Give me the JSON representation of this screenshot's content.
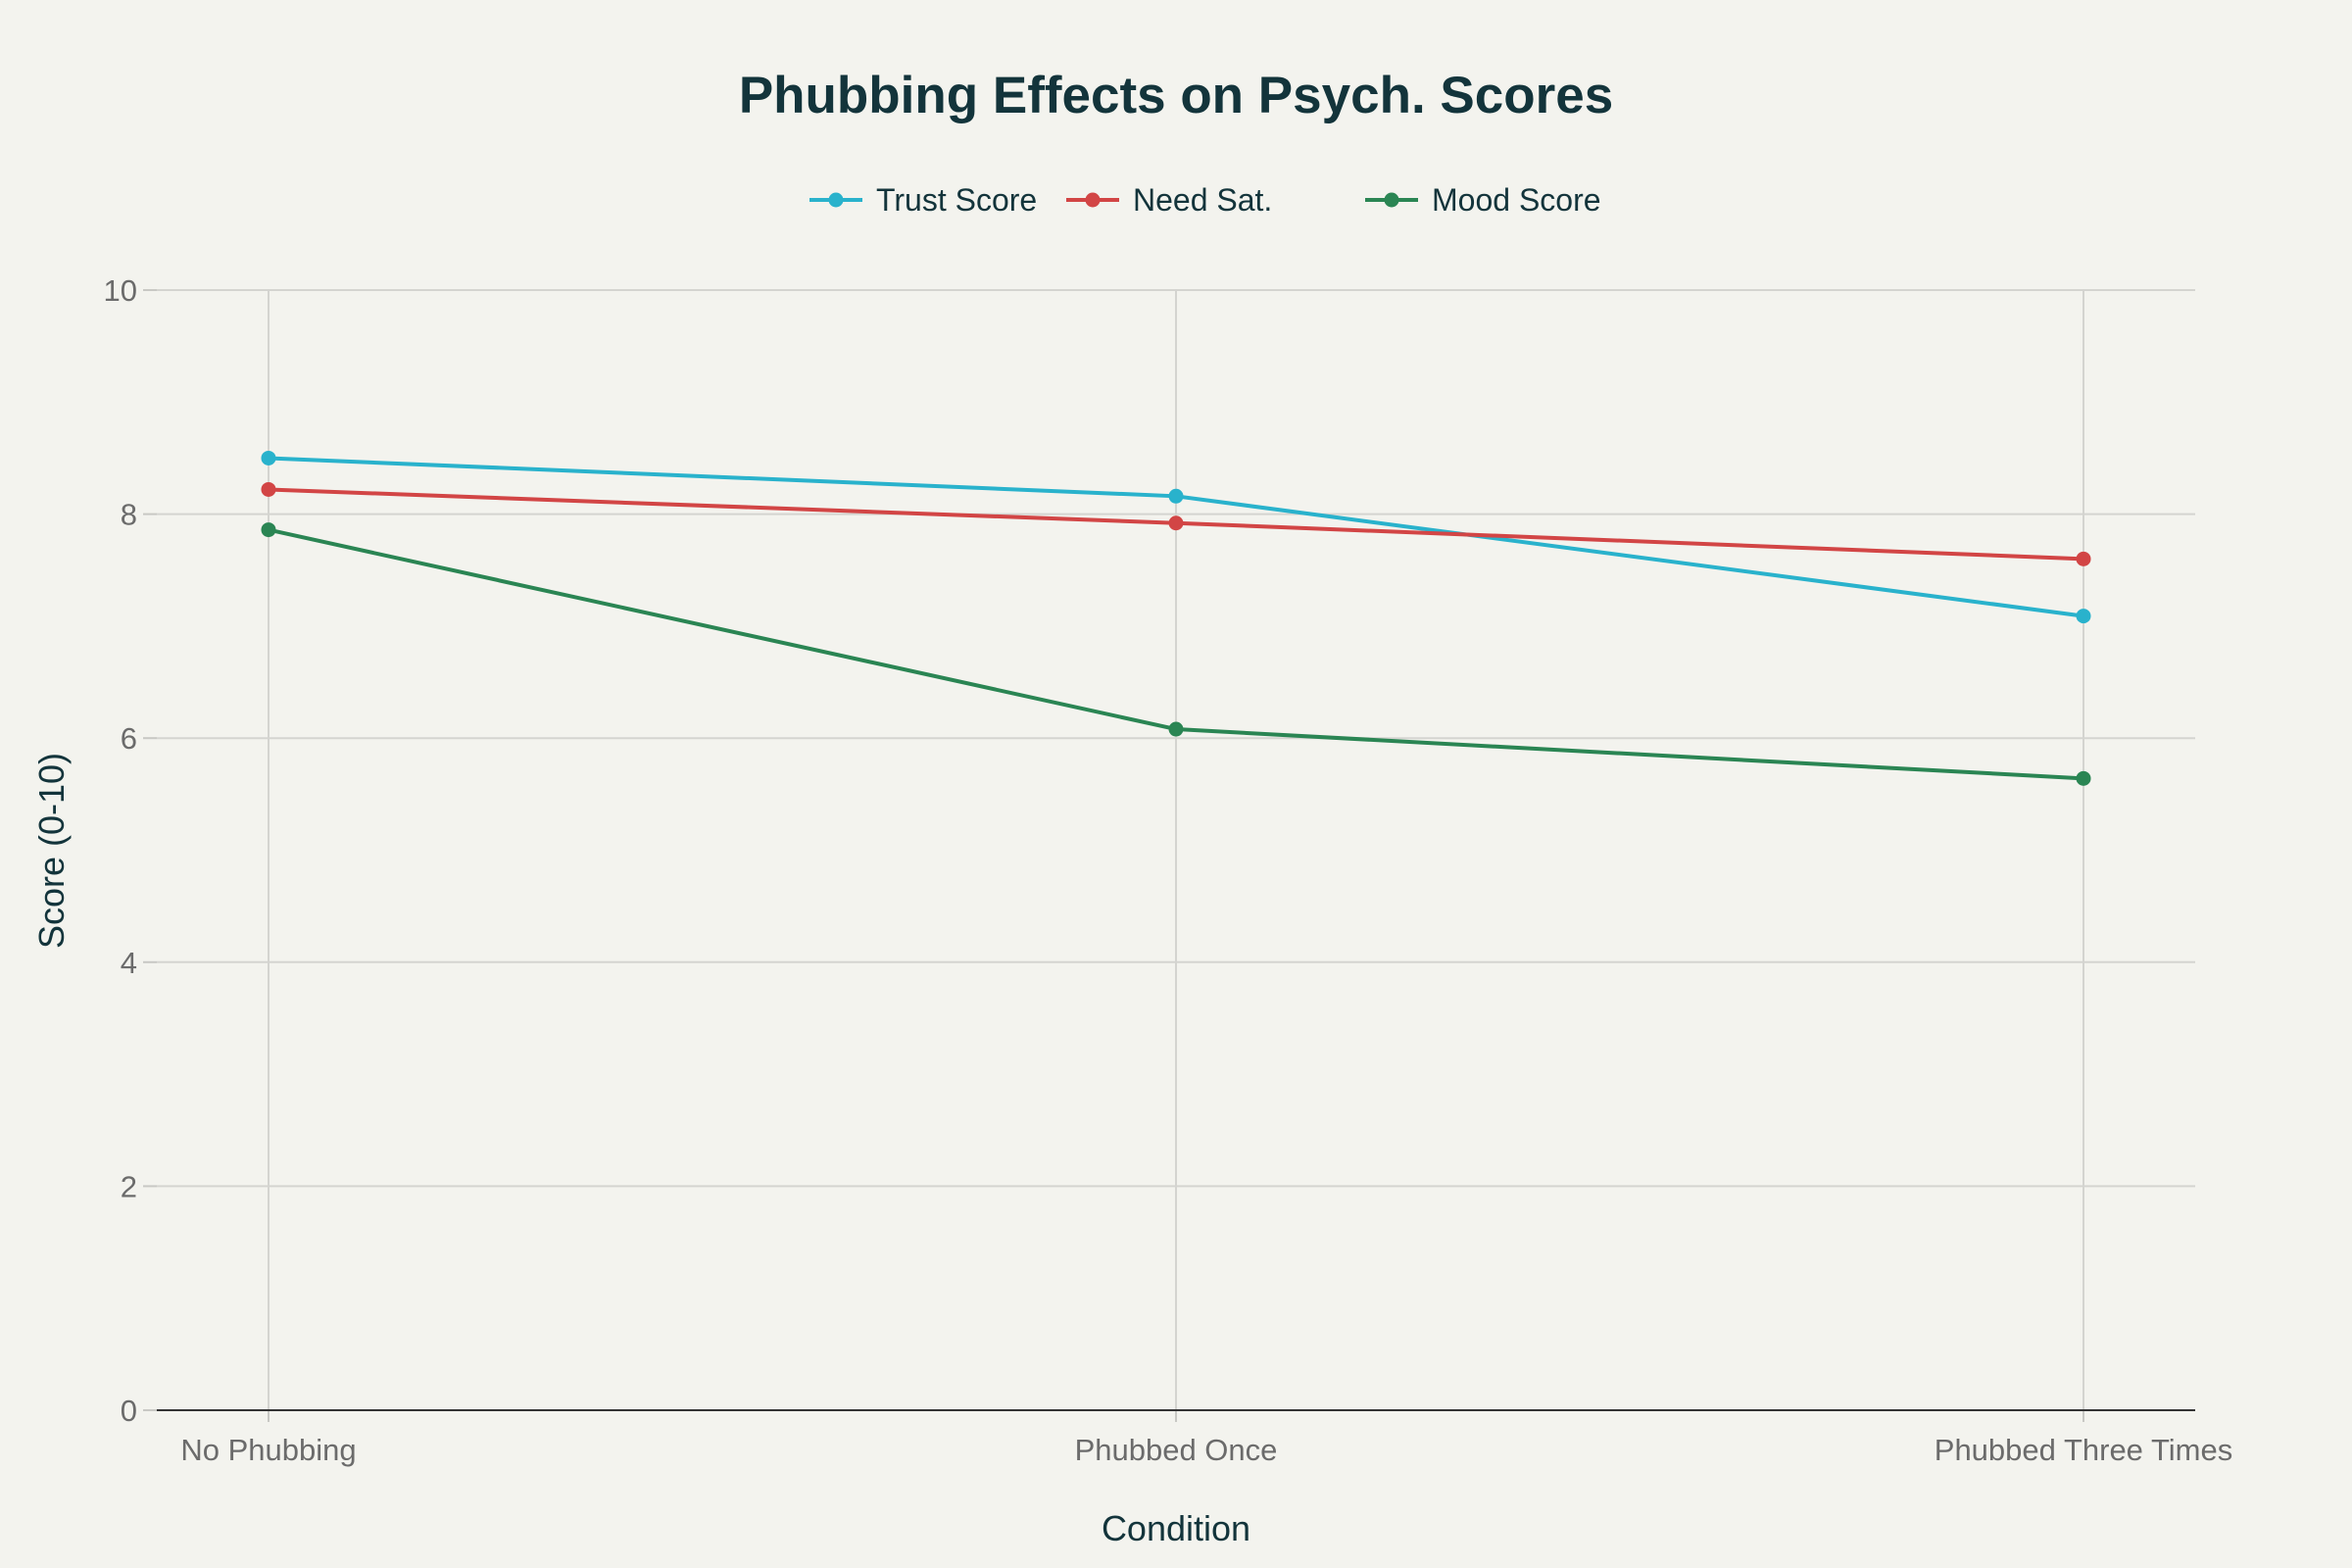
{
  "chart_data": {
    "type": "line",
    "title": "Phubbing Effects on Psych. Scores",
    "xlabel": "Condition",
    "ylabel": "Score (0-10)",
    "categories": [
      "No Phubbing",
      "Phubbed Once",
      "Phubbed Three Times"
    ],
    "ylim": [
      0,
      10
    ],
    "yticks": [
      0,
      2,
      4,
      6,
      8,
      10
    ],
    "grid": true,
    "legend_position": "top-center",
    "series": [
      {
        "name": "Trust Score",
        "color": "#29b2cc",
        "values": [
          8.5,
          8.16,
          7.09
        ]
      },
      {
        "name": "Need Sat.",
        "color": "#d24545",
        "values": [
          8.22,
          7.92,
          7.6
        ]
      },
      {
        "name": "Mood Score",
        "color": "#2a8553",
        "values": [
          7.86,
          6.08,
          5.64
        ]
      }
    ]
  }
}
